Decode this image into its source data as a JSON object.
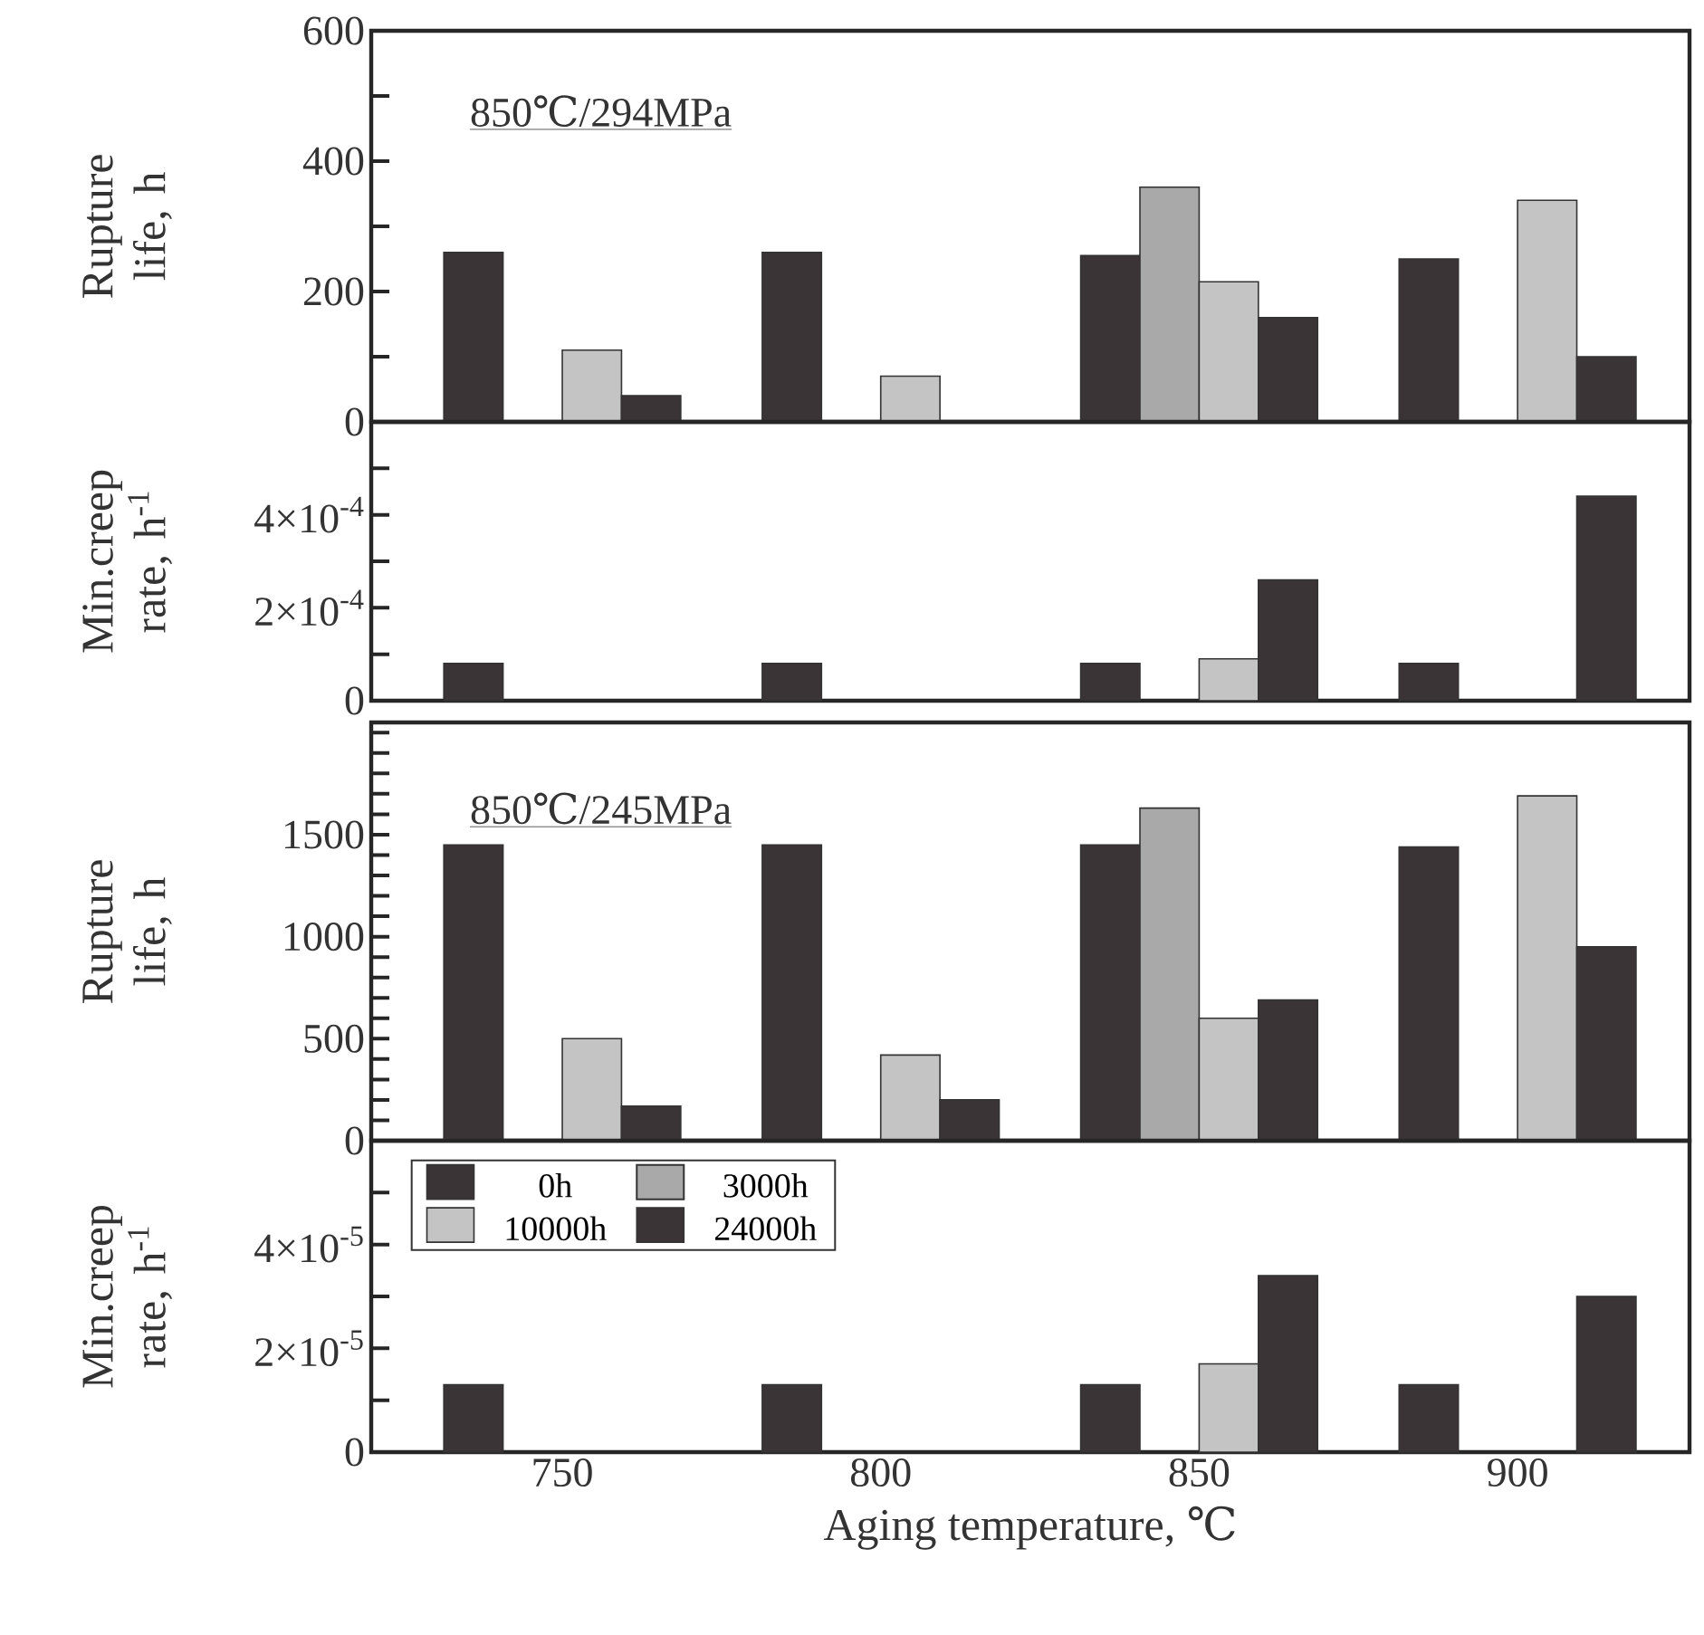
{
  "chart_data": [
    {
      "type": "bar",
      "ylabel": "Rupture life, h",
      "annotations": [
        "850℃/294MPa"
      ],
      "x": [
        750,
        800,
        850,
        900
      ],
      "xlim": [
        720,
        927
      ],
      "xticks": [
        750,
        800,
        850,
        900
      ],
      "ylim": [
        0,
        600
      ],
      "yticks": [
        0,
        {
          "value": 100,
          "label": null
        },
        200,
        {
          "value": 300,
          "label": null
        },
        400,
        {
          "value": 500,
          "label": null
        },
        600
      ],
      "tick_labels": "y",
      "series": [
        {
          "color": "#3b3436",
          "values": [
            260,
            260,
            255,
            250
          ]
        },
        {
          "color": "#a9a9a9",
          "values": [
            null,
            null,
            360,
            null
          ]
        },
        {
          "color": "#c4c4c4",
          "values": [
            110,
            70,
            215,
            340
          ]
        },
        {
          "color": "#3b3436",
          "values": [
            40,
            null,
            160,
            100
          ]
        }
      ]
    },
    {
      "type": "bar",
      "ylabel": "Min.creep rate, h$^{-1}$",
      "x": [
        750,
        800,
        850,
        900
      ],
      "xlim": [
        720,
        927
      ],
      "xticks": [
        750,
        800,
        850,
        900
      ],
      "ylim": [
        0,
        0.0006
      ],
      "yticks": [
        0,
        {
          "value": 0.0001,
          "label": null
        },
        {
          "value": 0.0002,
          "label": "2×10$^{-4}$"
        },
        {
          "value": 0.0003,
          "label": null
        },
        {
          "value": 0.0004,
          "label": "4×10$^{-4}$"
        },
        {
          "value": 0.0005,
          "label": null
        }
      ],
      "tick_labels": "y",
      "series": [
        {
          "color": "#3b3436",
          "values": [
            8e-05,
            8e-05,
            8e-05,
            8e-05
          ]
        },
        {
          "color": "#a9a9a9",
          "values": [
            null,
            null,
            null,
            null
          ]
        },
        {
          "color": "#c4c4c4",
          "values": [
            null,
            null,
            9e-05,
            null
          ]
        },
        {
          "color": "#3b3436",
          "values": [
            null,
            null,
            0.00026,
            0.00044
          ]
        }
      ]
    },
    {
      "type": "bar",
      "ylabel": "Rupture life, h",
      "annotations": [
        "850℃/245MPa"
      ],
      "x": [
        750,
        800,
        850,
        900
      ],
      "xlim": [
        720,
        927
      ],
      "xticks": [
        750,
        800,
        850,
        900
      ],
      "ylim": [
        0,
        2050
      ],
      "yticks": [
        0,
        {
          "value": 100,
          "label": null
        },
        {
          "value": 200,
          "label": null
        },
        {
          "value": 300,
          "label": null
        },
        {
          "value": 400,
          "label": null
        },
        500,
        {
          "value": 600,
          "label": null
        },
        {
          "value": 700,
          "label": null
        },
        {
          "value": 800,
          "label": null
        },
        {
          "value": 900,
          "label": null
        },
        1000,
        {
          "value": 1100,
          "label": null
        },
        {
          "value": 1200,
          "label": null
        },
        {
          "value": 1300,
          "label": null
        },
        {
          "value": 1400,
          "label": null
        },
        1500,
        {
          "value": 1600,
          "label": null
        },
        {
          "value": 1700,
          "label": null
        },
        {
          "value": 1800,
          "label": null
        },
        {
          "value": 1900,
          "label": null
        },
        {
          "value": 2000,
          "label": null
        }
      ],
      "tick_labels": "y",
      "series": [
        {
          "color": "#3b3436",
          "values": [
            1450,
            1450,
            1450,
            1440
          ]
        },
        {
          "color": "#a9a9a9",
          "values": [
            null,
            null,
            1630,
            null
          ]
        },
        {
          "color": "#c4c4c4",
          "values": [
            500,
            420,
            600,
            1690
          ]
        },
        {
          "color": "#3b3436",
          "values": [
            170,
            200,
            690,
            950
          ]
        }
      ]
    },
    {
      "type": "bar",
      "ylabel": "Min.creep rate, h$^{-1}$",
      "xlabel": "Aging temperature, ℃",
      "x": [
        750,
        800,
        850,
        900
      ],
      "xlim": [
        720,
        927
      ],
      "xticks": [
        750,
        800,
        850,
        900
      ],
      "ylim": [
        0,
        6e-05
      ],
      "yticks": [
        0,
        {
          "value": 1e-05,
          "label": null
        },
        {
          "value": 2e-05,
          "label": "2×10$^{-5}$"
        },
        {
          "value": 3e-05,
          "label": null
        },
        {
          "value": 4e-05,
          "label": "4×10$^{-5}$"
        },
        {
          "value": 5e-05,
          "label": null
        }
      ],
      "legend": "top left",
      "series": [
        {
          "name": "0h",
          "color": "#3b3436",
          "values": [
            1.3e-05,
            1.3e-05,
            1.3e-05,
            1.3e-05
          ]
        },
        {
          "name": "3000h",
          "color": "#a9a9a9",
          "values": [
            null,
            null,
            null,
            null
          ]
        },
        {
          "name": "10000h",
          "color": "#c4c4c4",
          "values": [
            null,
            null,
            1.7e-05,
            null
          ]
        },
        {
          "name": "24000h",
          "color": "#3b3436",
          "values": [
            null,
            null,
            3.4e-05,
            3e-05
          ]
        }
      ]
    }
  ]
}
